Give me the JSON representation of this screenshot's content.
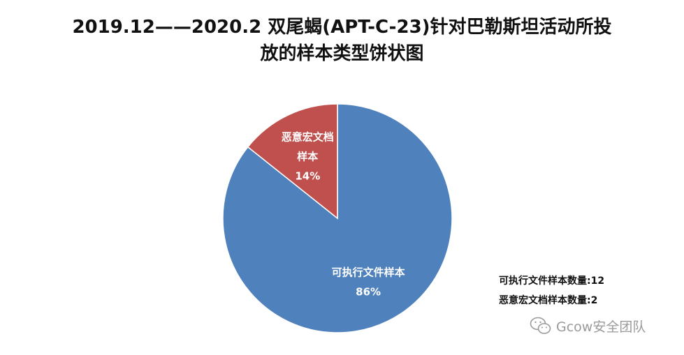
{
  "chart_data": {
    "type": "pie",
    "title_lines": [
      "2019.12——2020.2 双尾蝎(APT-C-23)针对巴勒斯坦活动所投",
      "放的样本类型饼状图"
    ],
    "slices": [
      {
        "label_lines": [
          "可执行文件样本"
        ],
        "pct_label": "86%",
        "value": 12,
        "color": "#4f81bd"
      },
      {
        "label_lines": [
          "恶意宏文档",
          "样本"
        ],
        "pct_label": "14%",
        "value": 2,
        "color": "#c0504d"
      }
    ],
    "notes": [
      "可执行文件样本数量:12",
      "恶意宏文档样本数量:2"
    ]
  },
  "watermark": {
    "text": "Gcow安全团队",
    "icon": "wechat-icon"
  }
}
